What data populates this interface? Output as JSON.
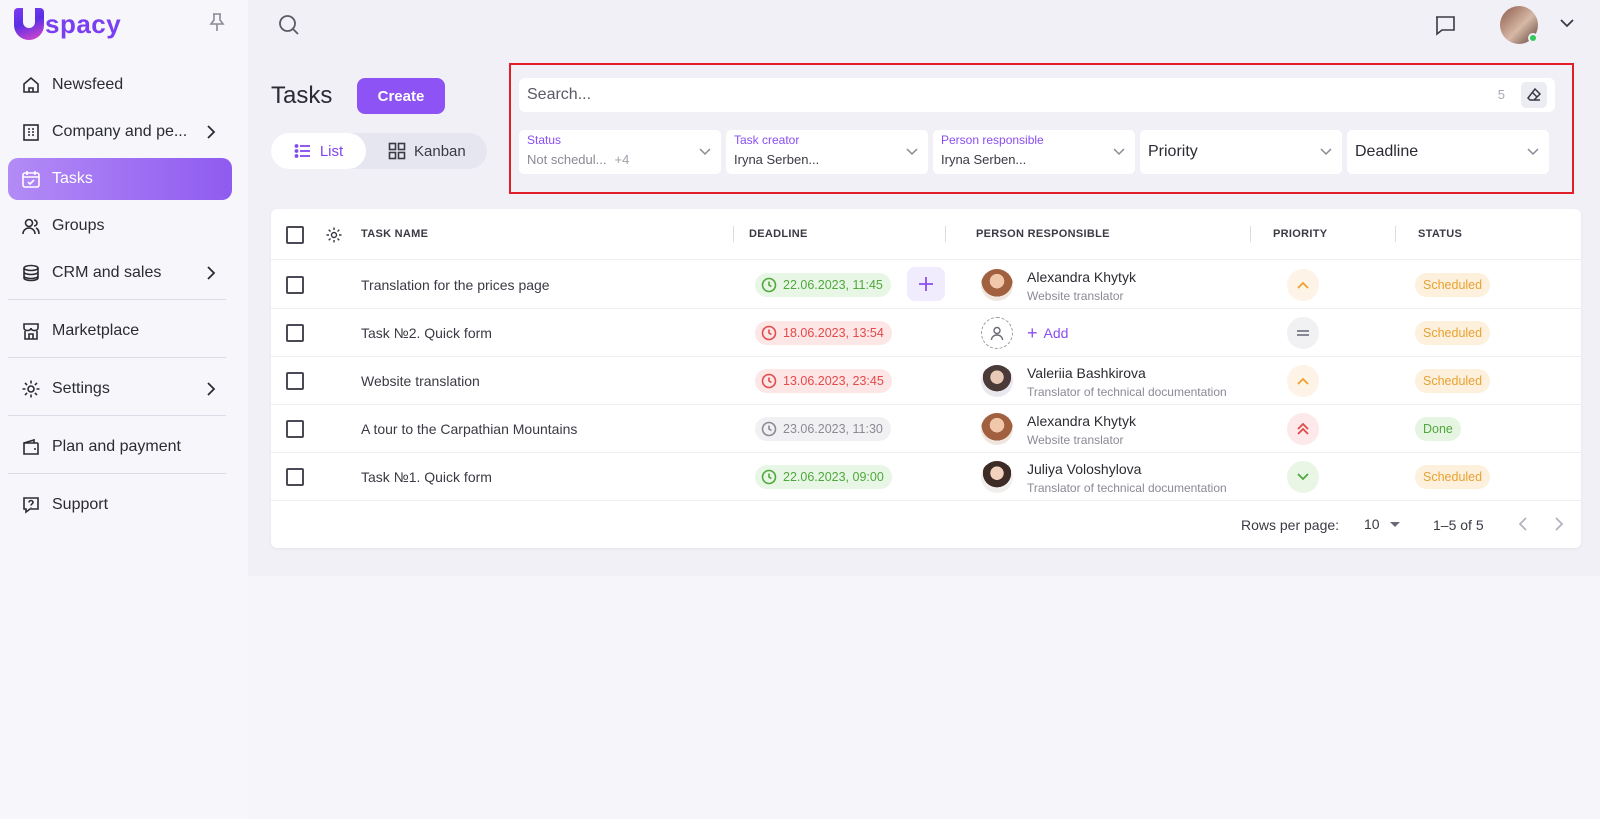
{
  "app": {
    "logo_text": "spacy",
    "brand_color": "#8e53f4",
    "highlight_border_color": "#e01f2a"
  },
  "sidebar": {
    "items": [
      {
        "label": "Newsfeed",
        "icon": "home-icon",
        "has_chevron": false,
        "active": false
      },
      {
        "label": "Company and pe...",
        "icon": "building-icon",
        "has_chevron": true,
        "active": false
      },
      {
        "label": "Tasks",
        "icon": "calendar-check-icon",
        "has_chevron": false,
        "active": true
      },
      {
        "label": "Groups",
        "icon": "users-icon",
        "has_chevron": false,
        "active": false
      },
      {
        "label": "CRM and sales",
        "icon": "coins-icon",
        "has_chevron": true,
        "active": false
      },
      {
        "label": "Marketplace",
        "icon": "store-icon",
        "has_chevron": false,
        "active": false
      },
      {
        "label": "Settings",
        "icon": "gear-icon",
        "has_chevron": true,
        "active": false
      },
      {
        "label": "Plan and payment",
        "icon": "wallet-icon",
        "has_chevron": false,
        "active": false
      },
      {
        "label": "Support",
        "icon": "help-icon",
        "has_chevron": false,
        "active": false
      }
    ]
  },
  "header": {
    "title": "Tasks",
    "create_label": "Create",
    "view_list_label": "List",
    "view_kanban_label": "Kanban"
  },
  "filters": {
    "search_placeholder": "Search...",
    "search_count": "5",
    "status": {
      "label": "Status",
      "value": "Not schedul...",
      "extra": "+4"
    },
    "task_creator": {
      "label": "Task creator",
      "value": "Iryna Serben..."
    },
    "person_responsible": {
      "label": "Person responsible",
      "value": "Iryna Serben..."
    },
    "priority": {
      "placeholder": "Priority"
    },
    "deadline": {
      "placeholder": "Deadline"
    }
  },
  "table": {
    "columns": {
      "task_name": "TASK NAME",
      "deadline": "DEADLINE",
      "person_responsible": "PERSON RESPONSIBLE",
      "priority": "PRIORITY",
      "status": "STATUS"
    },
    "rows": [
      {
        "task": "Translation for the prices page",
        "deadline": "22.06.2023, 11:45",
        "deadline_state": "green",
        "person": "Alexandra Khytyk",
        "role": "Website translator",
        "priority": "medium",
        "status": "Scheduled"
      },
      {
        "task": "Task №2. Quick form",
        "deadline": "18.06.2023, 13:54",
        "deadline_state": "red",
        "person": "",
        "role": "",
        "add_label": "Add",
        "priority": "normal",
        "status": "Scheduled"
      },
      {
        "task": "Website translation",
        "deadline": "13.06.2023, 23:45",
        "deadline_state": "red",
        "person": "Valeriia Bashkirova",
        "role": "Translator of technical documentation",
        "priority": "medium",
        "status": "Scheduled"
      },
      {
        "task": "A tour to the Carpathian Mountains",
        "deadline": "23.06.2023, 11:30",
        "deadline_state": "gray",
        "person": "Alexandra Khytyk",
        "role": "Website translator",
        "priority": "high",
        "status": "Done"
      },
      {
        "task": "Task №1. Quick form",
        "deadline": "22.06.2023, 09:00",
        "deadline_state": "green",
        "person": "Juliya Voloshylova",
        "role": "Translator of technical documentation",
        "priority": "low",
        "status": "Scheduled"
      }
    ]
  },
  "pagination": {
    "rows_per_page_label": "Rows per page:",
    "rows_per_page_value": "10",
    "range": "1–5 of 5"
  }
}
